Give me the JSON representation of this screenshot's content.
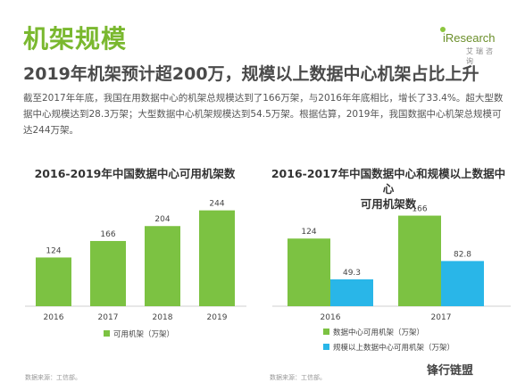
{
  "header": {
    "title": "机架规模",
    "subtitle": "2019年机架预计超200万，规模以上数据中心机架占比上升",
    "paragraph": "截至2017年年底，我国在用数据中心的机架总规模达到了166万架，与2016年年底相比，增长了33.4%。超大型数据中心规模达到28.3万架；大型数据中心机架规模达到54.5万架。根据估算，2019年，我国数据中心机架总规模可达244万架。"
  },
  "logo": {
    "text": "iResearch",
    "cn": "艾瑞咨询"
  },
  "chart_data": [
    {
      "type": "bar",
      "title": "2016-2019年中国数据中心可用机架数",
      "categories": [
        "2016",
        "2017",
        "2018",
        "2019"
      ],
      "series": [
        {
          "name": "可用机架（万架）",
          "values": [
            124,
            166,
            204,
            244
          ],
          "color": "#7cc242"
        }
      ],
      "source": "数据来源：工信部。"
    },
    {
      "type": "bar",
      "title": "2016-2017年中国数据中心和规模以上数据中心可用机架数",
      "title_lines": [
        "2016-2017年中国数据中心和规模以上数据中心",
        "可用机架数"
      ],
      "categories": [
        "2016",
        "2017"
      ],
      "series": [
        {
          "name": "数据中心可用机架（万架）",
          "values": [
            124,
            166
          ],
          "color": "#7cc242"
        },
        {
          "name": "规模以上数据中心可用机架（万架）",
          "values": [
            49.3,
            82.8
          ],
          "color": "#29b6e8"
        }
      ],
      "source": "数据来源：工信部。"
    }
  ],
  "watermark": "锋行链盟"
}
